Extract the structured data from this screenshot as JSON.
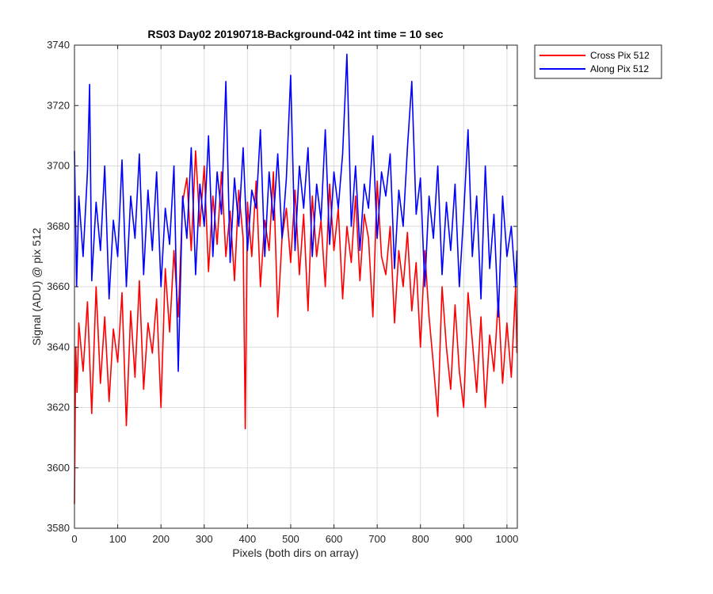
{
  "chart_data": {
    "type": "line",
    "title": "RS03 Day02 20190718-Background-042 int time = 10 sec",
    "xlabel": "Pixels (both dirs on array)",
    "ylabel": "Signal (ADU) @ pix 512",
    "xlim": [
      0,
      1024
    ],
    "ylim": [
      3580,
      3740
    ],
    "xticks": [
      0,
      100,
      200,
      300,
      400,
      500,
      600,
      700,
      800,
      900,
      1000
    ],
    "yticks": [
      3580,
      3600,
      3620,
      3640,
      3660,
      3680,
      3700,
      3720,
      3740
    ],
    "grid": true,
    "legend_position": "outside-top-right",
    "series": [
      {
        "name": "Cross Pix 512",
        "color": "#ff0000",
        "x": [
          0,
          3,
          6,
          10,
          20,
          30,
          40,
          50,
          60,
          70,
          80,
          90,
          100,
          110,
          120,
          130,
          140,
          150,
          160,
          170,
          180,
          190,
          200,
          210,
          220,
          230,
          240,
          250,
          260,
          270,
          280,
          290,
          300,
          310,
          320,
          330,
          340,
          350,
          360,
          370,
          380,
          390,
          395,
          400,
          410,
          420,
          430,
          440,
          450,
          460,
          470,
          480,
          490,
          500,
          510,
          520,
          530,
          540,
          550,
          560,
          570,
          580,
          590,
          600,
          610,
          620,
          630,
          640,
          650,
          660,
          670,
          680,
          690,
          700,
          710,
          720,
          730,
          740,
          750,
          760,
          770,
          780,
          790,
          800,
          810,
          820,
          830,
          840,
          850,
          860,
          870,
          880,
          890,
          900,
          910,
          920,
          930,
          940,
          950,
          960,
          970,
          980,
          990,
          1000,
          1010,
          1020,
          1023
        ],
        "y": [
          3588,
          3640,
          3625,
          3648,
          3632,
          3655,
          3618,
          3660,
          3628,
          3650,
          3622,
          3646,
          3635,
          3658,
          3614,
          3652,
          3630,
          3662,
          3626,
          3648,
          3638,
          3656,
          3620,
          3666,
          3645,
          3672,
          3650,
          3688,
          3696,
          3672,
          3705,
          3680,
          3700,
          3665,
          3690,
          3674,
          3698,
          3670,
          3685,
          3662,
          3692,
          3676,
          3613,
          3688,
          3670,
          3695,
          3660,
          3682,
          3672,
          3698,
          3650,
          3676,
          3686,
          3668,
          3692,
          3664,
          3684,
          3652,
          3690,
          3670,
          3682,
          3660,
          3694,
          3672,
          3686,
          3656,
          3680,
          3668,
          3690,
          3662,
          3684,
          3676,
          3650,
          3695,
          3670,
          3664,
          3680,
          3648,
          3672,
          3660,
          3678,
          3652,
          3668,
          3640,
          3672,
          3650,
          3634,
          3617,
          3660,
          3640,
          3626,
          3654,
          3632,
          3620,
          3658,
          3642,
          3625,
          3650,
          3620,
          3644,
          3632,
          3656,
          3628,
          3648,
          3630,
          3660,
          3638
        ]
      },
      {
        "name": "Along Pix 512",
        "color": "#0000ff",
        "x": [
          0,
          5,
          10,
          20,
          30,
          35,
          40,
          50,
          60,
          70,
          80,
          90,
          100,
          110,
          120,
          130,
          140,
          150,
          160,
          170,
          180,
          190,
          200,
          210,
          220,
          230,
          240,
          250,
          260,
          270,
          280,
          290,
          300,
          310,
          320,
          330,
          340,
          350,
          360,
          370,
          380,
          390,
          400,
          410,
          420,
          430,
          440,
          450,
          460,
          470,
          480,
          490,
          500,
          510,
          520,
          530,
          540,
          550,
          560,
          570,
          580,
          590,
          600,
          610,
          620,
          630,
          640,
          650,
          660,
          670,
          680,
          690,
          700,
          710,
          720,
          730,
          740,
          750,
          760,
          770,
          780,
          790,
          800,
          810,
          820,
          830,
          840,
          850,
          860,
          870,
          880,
          890,
          900,
          910,
          920,
          930,
          940,
          950,
          960,
          970,
          980,
          990,
          1000,
          1010,
          1020,
          1023
        ],
        "y": [
          3705,
          3660,
          3690,
          3670,
          3698,
          3727,
          3662,
          3688,
          3672,
          3700,
          3656,
          3682,
          3670,
          3702,
          3660,
          3690,
          3676,
          3704,
          3664,
          3692,
          3672,
          3698,
          3660,
          3686,
          3674,
          3700,
          3632,
          3690,
          3676,
          3706,
          3664,
          3694,
          3680,
          3710,
          3670,
          3698,
          3684,
          3728,
          3668,
          3696,
          3680,
          3706,
          3672,
          3692,
          3686,
          3712,
          3670,
          3698,
          3682,
          3704,
          3676,
          3696,
          3730,
          3672,
          3700,
          3686,
          3706,
          3670,
          3694,
          3682,
          3712,
          3674,
          3698,
          3686,
          3704,
          3737,
          3680,
          3700,
          3672,
          3694,
          3686,
          3710,
          3676,
          3698,
          3690,
          3704,
          3666,
          3692,
          3680,
          3706,
          3728,
          3684,
          3696,
          3660,
          3690,
          3676,
          3700,
          3664,
          3688,
          3672,
          3694,
          3660,
          3684,
          3712,
          3670,
          3690,
          3656,
          3700,
          3666,
          3684,
          3650,
          3690,
          3670,
          3680,
          3660,
          3672
        ]
      }
    ]
  }
}
